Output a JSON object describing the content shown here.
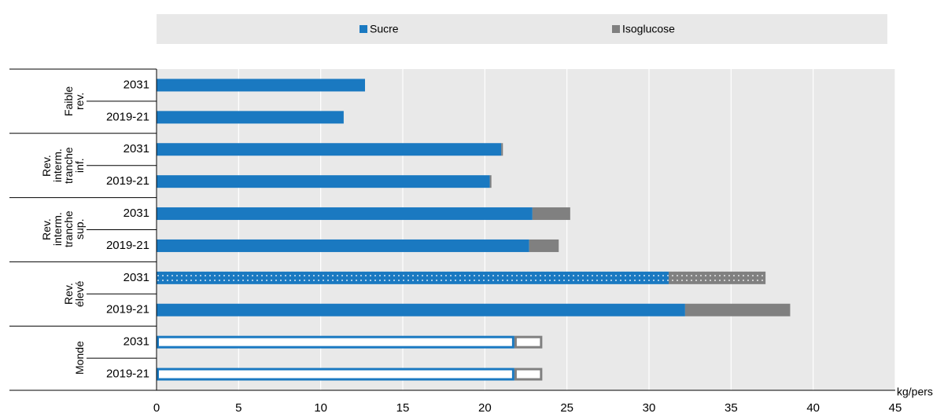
{
  "chart_data": {
    "type": "bar",
    "orientation": "horizontal",
    "stacked": true,
    "groups": [
      "Faible rev.",
      "Rev. interm. tranche inf.",
      "Rev. interm. tranche sup.",
      "Rev. élevé",
      "Monde"
    ],
    "categories": [
      "2031",
      "2019-21",
      "2031",
      "2019-21",
      "2031",
      "2019-21",
      "2031",
      "2019-21",
      "2031",
      "2019-21"
    ],
    "series": [
      {
        "name": "Sucre",
        "color": "#1a79c1",
        "values": [
          12.7,
          11.4,
          21.0,
          20.3,
          22.9,
          22.7,
          31.2,
          32.2,
          21.8,
          21.8
        ]
      },
      {
        "name": "Isoglucose",
        "color": "#808080",
        "values": [
          0,
          0,
          0.1,
          0.1,
          2.3,
          1.8,
          5.9,
          6.4,
          1.7,
          1.7
        ]
      }
    ],
    "bar_styles": [
      "solid",
      "solid",
      "solid",
      "solid",
      "solid",
      "solid",
      "dotted",
      "solid",
      "outline",
      "outline"
    ],
    "x_label": "kg/pers",
    "xlim": [
      0,
      45
    ],
    "xticks": [
      0,
      5,
      10,
      15,
      20,
      25,
      30,
      35,
      40,
      45
    ],
    "grid": true,
    "legend": "top"
  }
}
